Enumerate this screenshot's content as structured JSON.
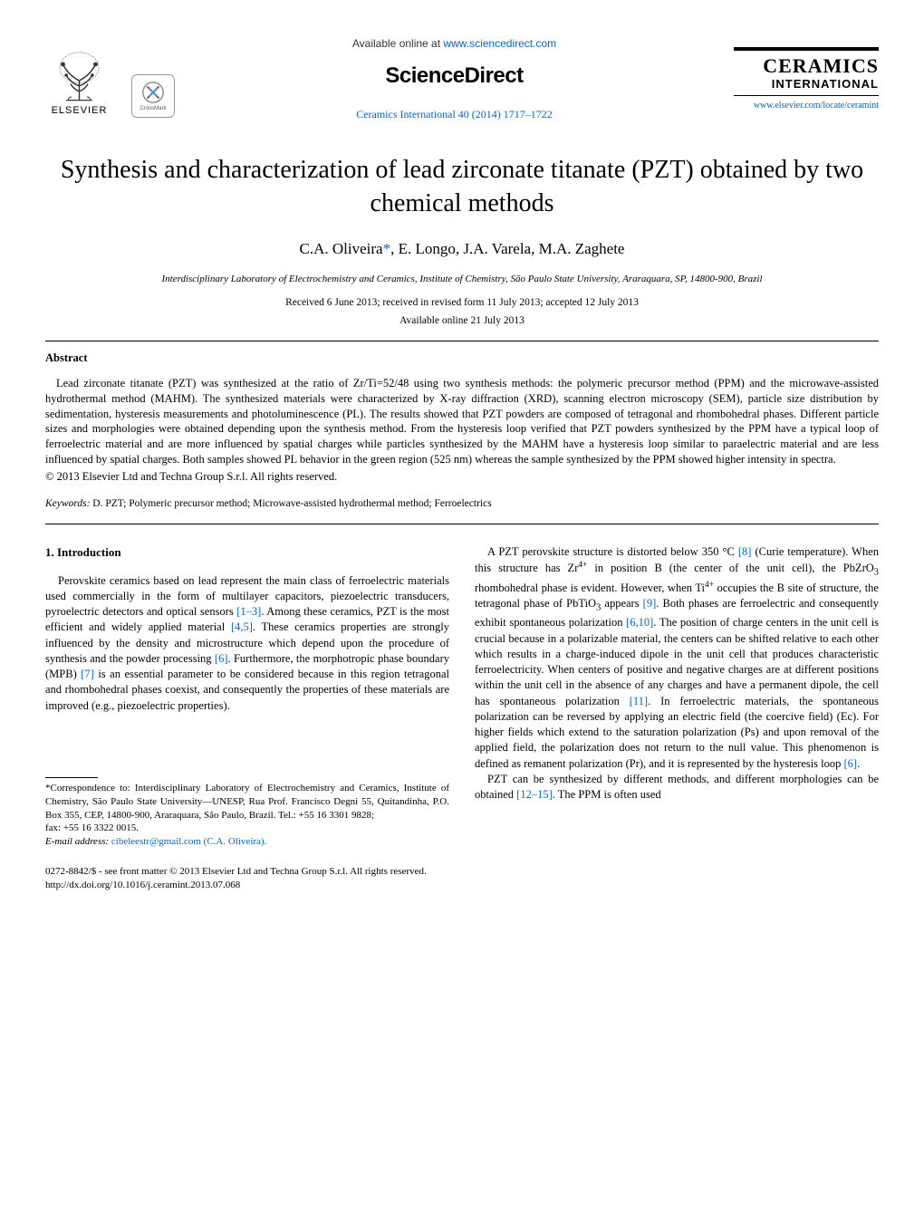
{
  "header": {
    "elsevier_label": "ELSEVIER",
    "crossmark_label": "CrossMark",
    "available_prefix": "Available online at ",
    "available_url": "www.sciencedirect.com",
    "sciencedirect": "ScienceDirect",
    "journal_ref": "Ceramics International 40 (2014) 1717–1722",
    "journal_title": "CERAMICS",
    "journal_sub": "INTERNATIONAL",
    "journal_url": "www.elsevier.com/locate/ceramint"
  },
  "title": "Synthesis and characterization of lead zirconate titanate (PZT) obtained by two chemical methods",
  "authors_line": "C.A. Oliveira*, E. Longo, J.A. Varela, M.A. Zaghete",
  "corr_marker": "*",
  "affiliation": "Interdisciplinary Laboratory of Electrochemistry and Ceramics, Institute of Chemistry, São Paulo State University, Araraquara, SP, 14800-900, Brazil",
  "dates_received": "Received 6 June 2013; received in revised form 11 July 2013; accepted 12 July 2013",
  "dates_online": "Available online 21 July 2013",
  "abstract": {
    "heading": "Abstract",
    "body": "Lead zirconate titanate (PZT) was synthesized at the ratio of Zr/Ti=52/48 using two synthesis methods: the polymeric precursor method (PPM) and the microwave-assisted hydrothermal method (MAHM). The synthesized materials were characterized by X-ray diffraction (XRD), scanning electron microscopy (SEM), particle size distribution by sedimentation, hysteresis measurements and photoluminescence (PL). The results showed that PZT powders are composed of tetragonal and rhombohedral phases. Different particle sizes and morphologies were obtained depending upon the synthesis method. From the hysteresis loop verified that PZT powders synthesized by the PPM have a typical loop of ferroelectric material and are more influenced by spatial charges while particles synthesized by the MAHM have a hysteresis loop similar to paraelectric material and are less influenced by spatial charges. Both samples showed PL behavior in the green region (525 nm) whereas the sample synthesized by the PPM showed higher intensity in spectra.",
    "copyright": "© 2013 Elsevier Ltd and Techna Group S.r.l. All rights reserved."
  },
  "keywords": {
    "label": "Keywords:",
    "text": " D. PZT; Polymeric precursor method; Microwave-assisted hydrothermal method; Ferroelectrics"
  },
  "intro": {
    "heading": "1.  Introduction",
    "col1_html": "Perovskite ceramics based on lead represent the main class of ferroelectric materials used commercially in the form of multilayer capacitors, piezoelectric transducers, pyroelectric detectors and optical sensors <span class=\"ref-link\">[1–3]</span>. Among these ceramics, PZT is the most efficient and widely applied material <span class=\"ref-link\">[4,5]</span>. These ceramics properties are strongly influenced by the density and microstructure which depend upon the procedure of synthesis and the powder processing <span class=\"ref-link\">[6]</span>. Furthermore, the morphotropic phase boundary (MPB) <span class=\"ref-link\">[7]</span> is an essential parameter to be considered because in this region tetragonal and rhombohedral phases coexist, and consequently the properties of these materials are improved (e.g., piezoelectric properties).",
    "col2_p1_html": "A PZT perovskite structure is distorted below 350 °C <span class=\"ref-link\">[8]</span> (Curie temperature). When this structure has Zr<sup>4+</sup> in position B (the center of the unit cell), the PbZrO<sub>3</sub> rhombohedral phase is evident. However, when Ti<sup>4+</sup> occupies the B site of structure, the tetragonal phase of PbTiO<sub>3</sub> appears <span class=\"ref-link\">[9]</span>. Both phases are ferroelectric and consequently exhibit spontaneous polarization <span class=\"ref-link\">[6,10]</span>. The position of charge centers in the unit cell is crucial because in a polarizable material, the centers can be shifted relative to each other which results in a charge-induced dipole in the unit cell that produces characteristic ferroelectricity. When centers of positive and negative charges are at different positions within the unit cell in the absence of any charges and have a permanent dipole, the cell has spontaneous polarization <span class=\"ref-link\">[11]</span>. In ferroelectric materials, the spontaneous polarization can be reversed by applying an electric field (the coercive field) (Ec). For higher fields which extend to the saturation polarization (Ps) and upon removal of the applied field, the polarization does not return to the null value. This phenomenon is defined as remanent polarization (Pr), and it is represented by the hysteresis loop <span class=\"ref-link\">[6]</span>.",
    "col2_p2_html": "PZT can be synthesized by different methods, and different morphologies can be obtained <span class=\"ref-link\">[12–15]</span>. The PPM is often used"
  },
  "footnote": {
    "corr_html": "*Correspondence to: Interdisciplinary Laboratory of Electrochemistry and Ceramics, Institute of Chemistry, São Paulo State University—UNESP, Rua Prof. Francisco Degni 55, Quitandinha, P.O. Box 355, CEP, 14800-900, Araraquara, São Paulo, Brazil. Tel.: +55 16 3301 9828;",
    "fax": "fax: +55 16 3322 0015.",
    "email_label": "E-mail address:",
    "email": " cibeleestr@gmail.com (C.A. Oliveira)."
  },
  "footer": {
    "line1": "0272-8842/$ - see front matter © 2013 Elsevier Ltd and Techna Group S.r.l. All rights reserved.",
    "doi": "http://dx.doi.org/10.1016/j.ceramint.2013.07.068"
  },
  "colors": {
    "link": "#0066cc",
    "text": "#000000",
    "bg": "#ffffff"
  }
}
